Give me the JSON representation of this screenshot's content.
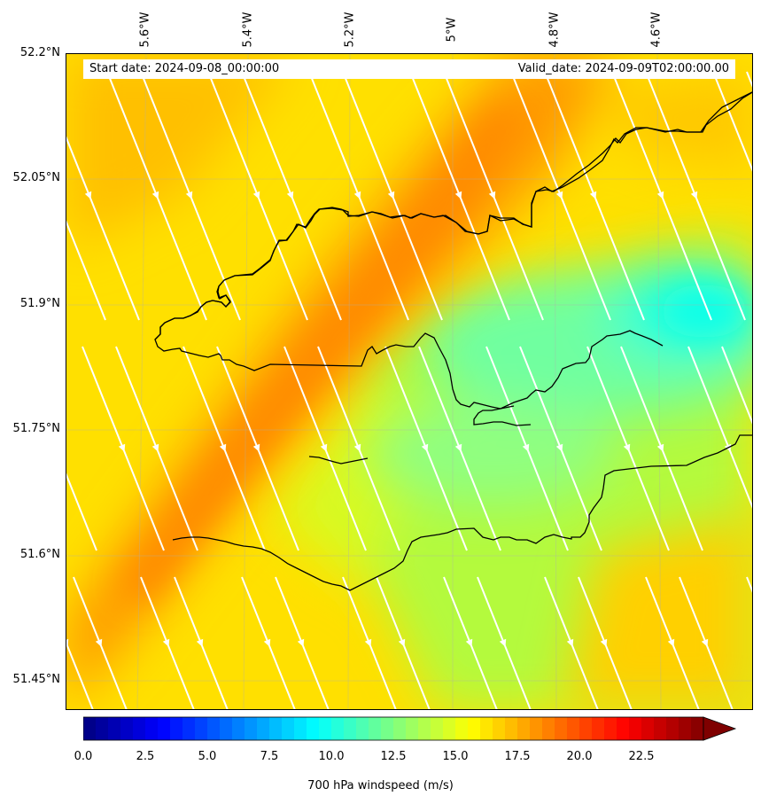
{
  "map": {
    "start_date": "Start date: 2024-09-08_00:00:00",
    "valid_date": "Valid_date: 2024-09-09T02:00:00.00",
    "lon_labels": [
      "5.6°W",
      "5.4°W",
      "5.2°W",
      "5°W",
      "4.8°W",
      "4.6°W"
    ],
    "lat_labels": [
      "52.2°N",
      "52.05°N",
      "51.9°N",
      "51.75°N",
      "51.6°N",
      "51.45°N"
    ],
    "field": "700 hPa windspeed",
    "streamline_color": "#ffffff",
    "coastline_color": "#000000"
  },
  "colorbar": {
    "label": "700 hPa windspeed (m/s)",
    "ticks": [
      "0.0",
      "2.5",
      "5.0",
      "7.5",
      "10.0",
      "12.5",
      "15.0",
      "17.5",
      "20.0",
      "22.5"
    ],
    "min": 0,
    "max": 25,
    "colormap": "jet",
    "extend": "max"
  }
}
